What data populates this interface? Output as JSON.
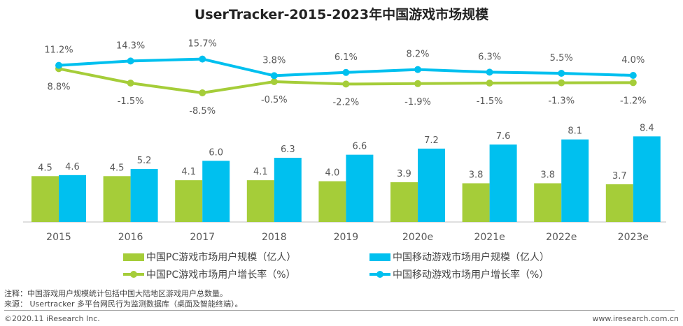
{
  "chart_data": {
    "type": "bar+line",
    "title": "UserTracker-2015-2023年中国游戏市场规模",
    "categories": [
      "2015",
      "2016",
      "2017",
      "2018",
      "2019",
      "2020e",
      "2021e",
      "2022e",
      "2023e"
    ],
    "series": [
      {
        "name": "中国PC游戏市场用户规模（亿人）",
        "kind": "bar",
        "color": "#a5cd39",
        "values": [
          4.5,
          4.5,
          4.1,
          4.1,
          4.0,
          3.9,
          3.8,
          3.8,
          3.7
        ]
      },
      {
        "name": "中国移动游戏市场用户规模（亿人）",
        "kind": "bar",
        "color": "#00c0ef",
        "values": [
          4.6,
          5.2,
          6.0,
          6.3,
          6.6,
          7.2,
          7.6,
          8.1,
          8.4
        ]
      },
      {
        "name": "中国PC游戏市场用户增长率（%）",
        "kind": "line",
        "color": "#a5cd39",
        "values": [
          8.8,
          -1.5,
          -8.5,
          -0.5,
          -2.2,
          -1.9,
          -1.5,
          -1.3,
          -1.2
        ],
        "labels": [
          "8.8%",
          "-1.5%",
          "-8.5%",
          "-0.5%",
          "-2.2%",
          "-1.9%",
          "-1.5%",
          "-1.3%",
          "-1.2%"
        ]
      },
      {
        "name": "中国移动游戏市场用户增长率（%）",
        "kind": "line",
        "color": "#00c0ef",
        "values": [
          11.2,
          14.3,
          15.7,
          3.8,
          6.1,
          8.2,
          6.3,
          5.5,
          4.0
        ],
        "labels": [
          "11.2%",
          "14.3%",
          "15.7%",
          "3.8%",
          "6.1%",
          "8.2%",
          "6.3%",
          "5.5%",
          "4.0%"
        ]
      }
    ],
    "grid": false,
    "legend": "bottom"
  },
  "notes": {
    "note": "注释：中国游戏用户规模统计包括中国大陆地区游戏用户总数量。",
    "source": "来源： Usertracker 多平台网民行为监测数据库（桌面及智能终端）。"
  },
  "footer": {
    "copyright": "©2020.11 iResearch Inc.",
    "url": "www.iresearch.com.cn"
  }
}
